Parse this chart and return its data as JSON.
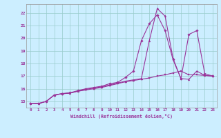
{
  "xlabel": "Windchill (Refroidissement éolien,°C)",
  "bg_color": "#cceeff",
  "grid_color": "#99cccc",
  "line_color": "#993399",
  "xlim": [
    -0.5,
    23.5
  ],
  "ylim": [
    14.5,
    22.7
  ],
  "xticks": [
    0,
    1,
    2,
    3,
    4,
    5,
    6,
    7,
    8,
    9,
    10,
    11,
    12,
    13,
    14,
    15,
    16,
    17,
    18,
    19,
    20,
    21,
    22,
    23
  ],
  "yticks": [
    15,
    16,
    17,
    18,
    19,
    20,
    21,
    22
  ],
  "series1_x": [
    0,
    1,
    2,
    3,
    4,
    5,
    6,
    7,
    8,
    9,
    10,
    11,
    12,
    13,
    14,
    15,
    16,
    17,
    18,
    19,
    20,
    21,
    22,
    23
  ],
  "series1_y": [
    14.85,
    14.82,
    15.0,
    15.5,
    15.6,
    15.65,
    15.8,
    15.9,
    16.0,
    16.1,
    16.25,
    16.4,
    16.55,
    16.65,
    16.75,
    16.85,
    17.0,
    17.1,
    17.25,
    17.4,
    17.1,
    17.1,
    17.05,
    17.0
  ],
  "series2_x": [
    0,
    1,
    2,
    3,
    4,
    5,
    6,
    7,
    8,
    9,
    10,
    11,
    12,
    13,
    14,
    15,
    16,
    17,
    18,
    19,
    20,
    21,
    22,
    23
  ],
  "series2_y": [
    14.85,
    14.82,
    15.0,
    15.5,
    15.62,
    15.68,
    15.85,
    16.0,
    16.1,
    16.2,
    16.4,
    16.5,
    16.9,
    17.4,
    19.8,
    21.15,
    21.85,
    20.6,
    18.3,
    16.8,
    20.3,
    20.6,
    17.2,
    17.0
  ],
  "series3_x": [
    0,
    1,
    2,
    3,
    4,
    5,
    6,
    7,
    8,
    9,
    10,
    11,
    12,
    13,
    14,
    15,
    16,
    17,
    18,
    19,
    20,
    21,
    22,
    23
  ],
  "series3_y": [
    14.85,
    14.82,
    15.0,
    15.5,
    15.6,
    15.65,
    15.82,
    15.95,
    16.05,
    16.15,
    16.3,
    16.45,
    16.6,
    16.7,
    16.8,
    19.8,
    22.35,
    21.75,
    18.4,
    16.8,
    16.75,
    17.4,
    17.05,
    17.0
  ]
}
